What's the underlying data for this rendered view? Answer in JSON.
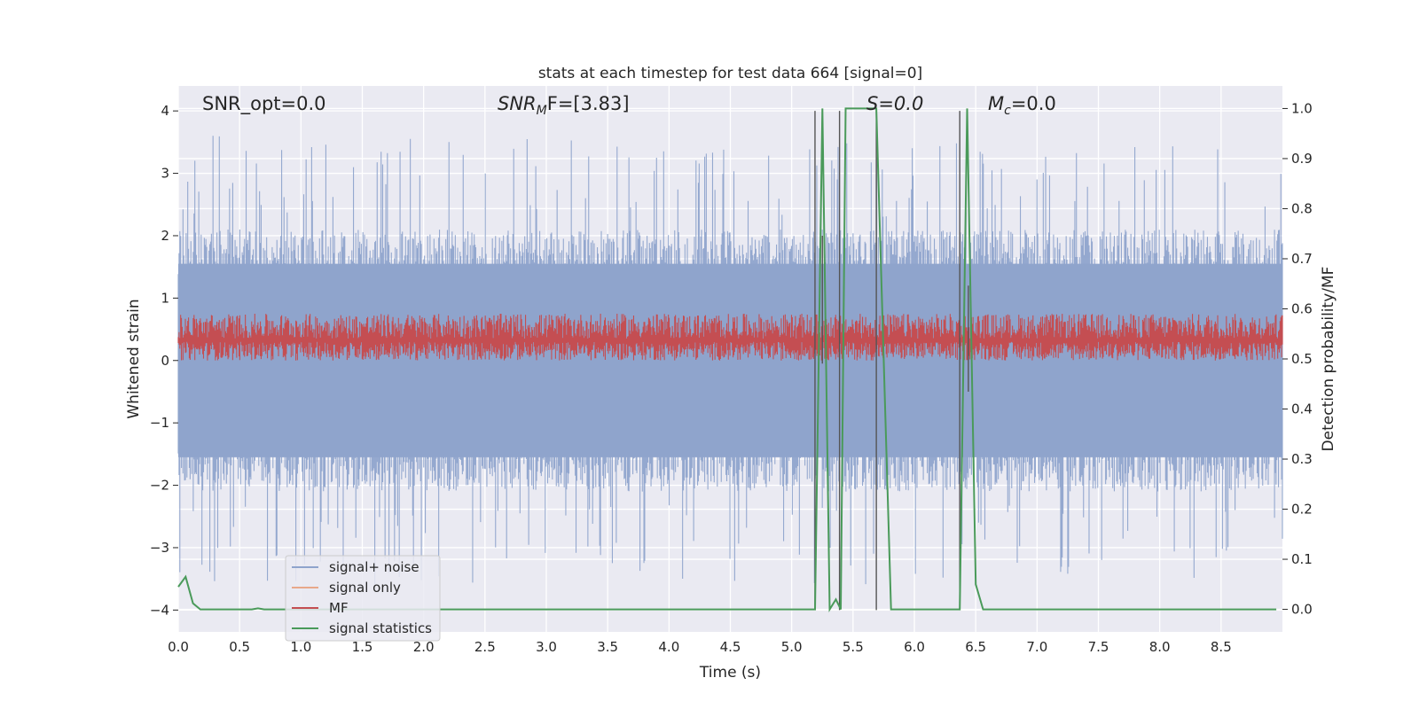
{
  "chart_data": {
    "type": "line",
    "title": "stats at each timestep for test data 664 [signal=0]",
    "xlabel": "Time (s)",
    "ylabel": "Whitened strain",
    "y2label": "Detection probability/MF",
    "xlim": [
      0.0,
      9.0
    ],
    "ylim": [
      -4.35,
      4.4
    ],
    "y2lim": [
      -0.045,
      1.045
    ],
    "xticks": [
      "0.0",
      "0.5",
      "1.0",
      "1.5",
      "2.0",
      "2.5",
      "3.0",
      "3.5",
      "4.0",
      "4.5",
      "5.0",
      "5.5",
      "6.0",
      "6.5",
      "7.0",
      "7.5",
      "8.0",
      "8.5"
    ],
    "yticks": [
      "4",
      "3",
      "2",
      "1",
      "0",
      "−1",
      "−2",
      "−3",
      "−4"
    ],
    "y2ticks": [
      "1.0",
      "0.9",
      "0.8",
      "0.7",
      "0.6",
      "0.5",
      "0.4",
      "0.3",
      "0.2",
      "0.1",
      "0.0"
    ],
    "grid": true,
    "legend_position": "lower-left",
    "annotations": {
      "snr_opt": "SNR_opt=0.0",
      "snr_mf_main": "SNR",
      "snr_mf_sub": "M",
      "snr_mf_rest": "F=[3.83]",
      "s": "S=0.0",
      "mc_main": "M",
      "mc_sub": "c",
      "mc_rest": "=0.0"
    },
    "series": [
      {
        "name": "signal+ noise",
        "color": "#8fa4cc",
        "axis": "left",
        "description_envelope": "dense noise, core band approx -1.6 to 1.6, spikes to about +/-3.6",
        "noise_seed": 664
      },
      {
        "name": "signal only",
        "color": "#e8a88a",
        "axis": "left",
        "values": []
      },
      {
        "name": "MF",
        "color": "#c44e52",
        "axis": "left",
        "noise_range": [
          0.0,
          0.75
        ]
      },
      {
        "name": "signal statistics",
        "color": "#4a9a5a",
        "axis": "right",
        "points": [
          [
            0.0,
            0.045
          ],
          [
            0.06,
            0.065
          ],
          [
            0.12,
            0.012
          ],
          [
            0.18,
            0.0
          ],
          [
            0.6,
            0.0
          ],
          [
            0.65,
            0.002
          ],
          [
            0.7,
            0.0
          ],
          [
            5.19,
            0.0
          ],
          [
            5.25,
            1.0
          ],
          [
            5.31,
            0.0
          ],
          [
            5.36,
            0.02
          ],
          [
            5.4,
            0.0
          ],
          [
            5.44,
            1.0
          ],
          [
            5.69,
            1.0
          ],
          [
            5.81,
            0.0
          ],
          [
            6.37,
            0.0
          ],
          [
            6.43,
            1.0
          ],
          [
            6.5,
            0.05
          ],
          [
            6.56,
            0.0
          ],
          [
            8.95,
            0.0
          ]
        ]
      }
    ],
    "vertical_lines_x": [
      5.19,
      5.39,
      5.69,
      6.37
    ],
    "short_vertical_lines": [
      [
        5.25,
        -0.05,
        2.0
      ],
      [
        6.44,
        -0.5,
        1.2
      ]
    ]
  },
  "legend": {
    "items": [
      {
        "label": "signal+ noise",
        "color": "#8fa4cc"
      },
      {
        "label": "signal only",
        "color": "#e8a88a"
      },
      {
        "label": "MF",
        "color": "#c44e52"
      },
      {
        "label": "signal statistics",
        "color": "#4a9a5a"
      }
    ]
  }
}
